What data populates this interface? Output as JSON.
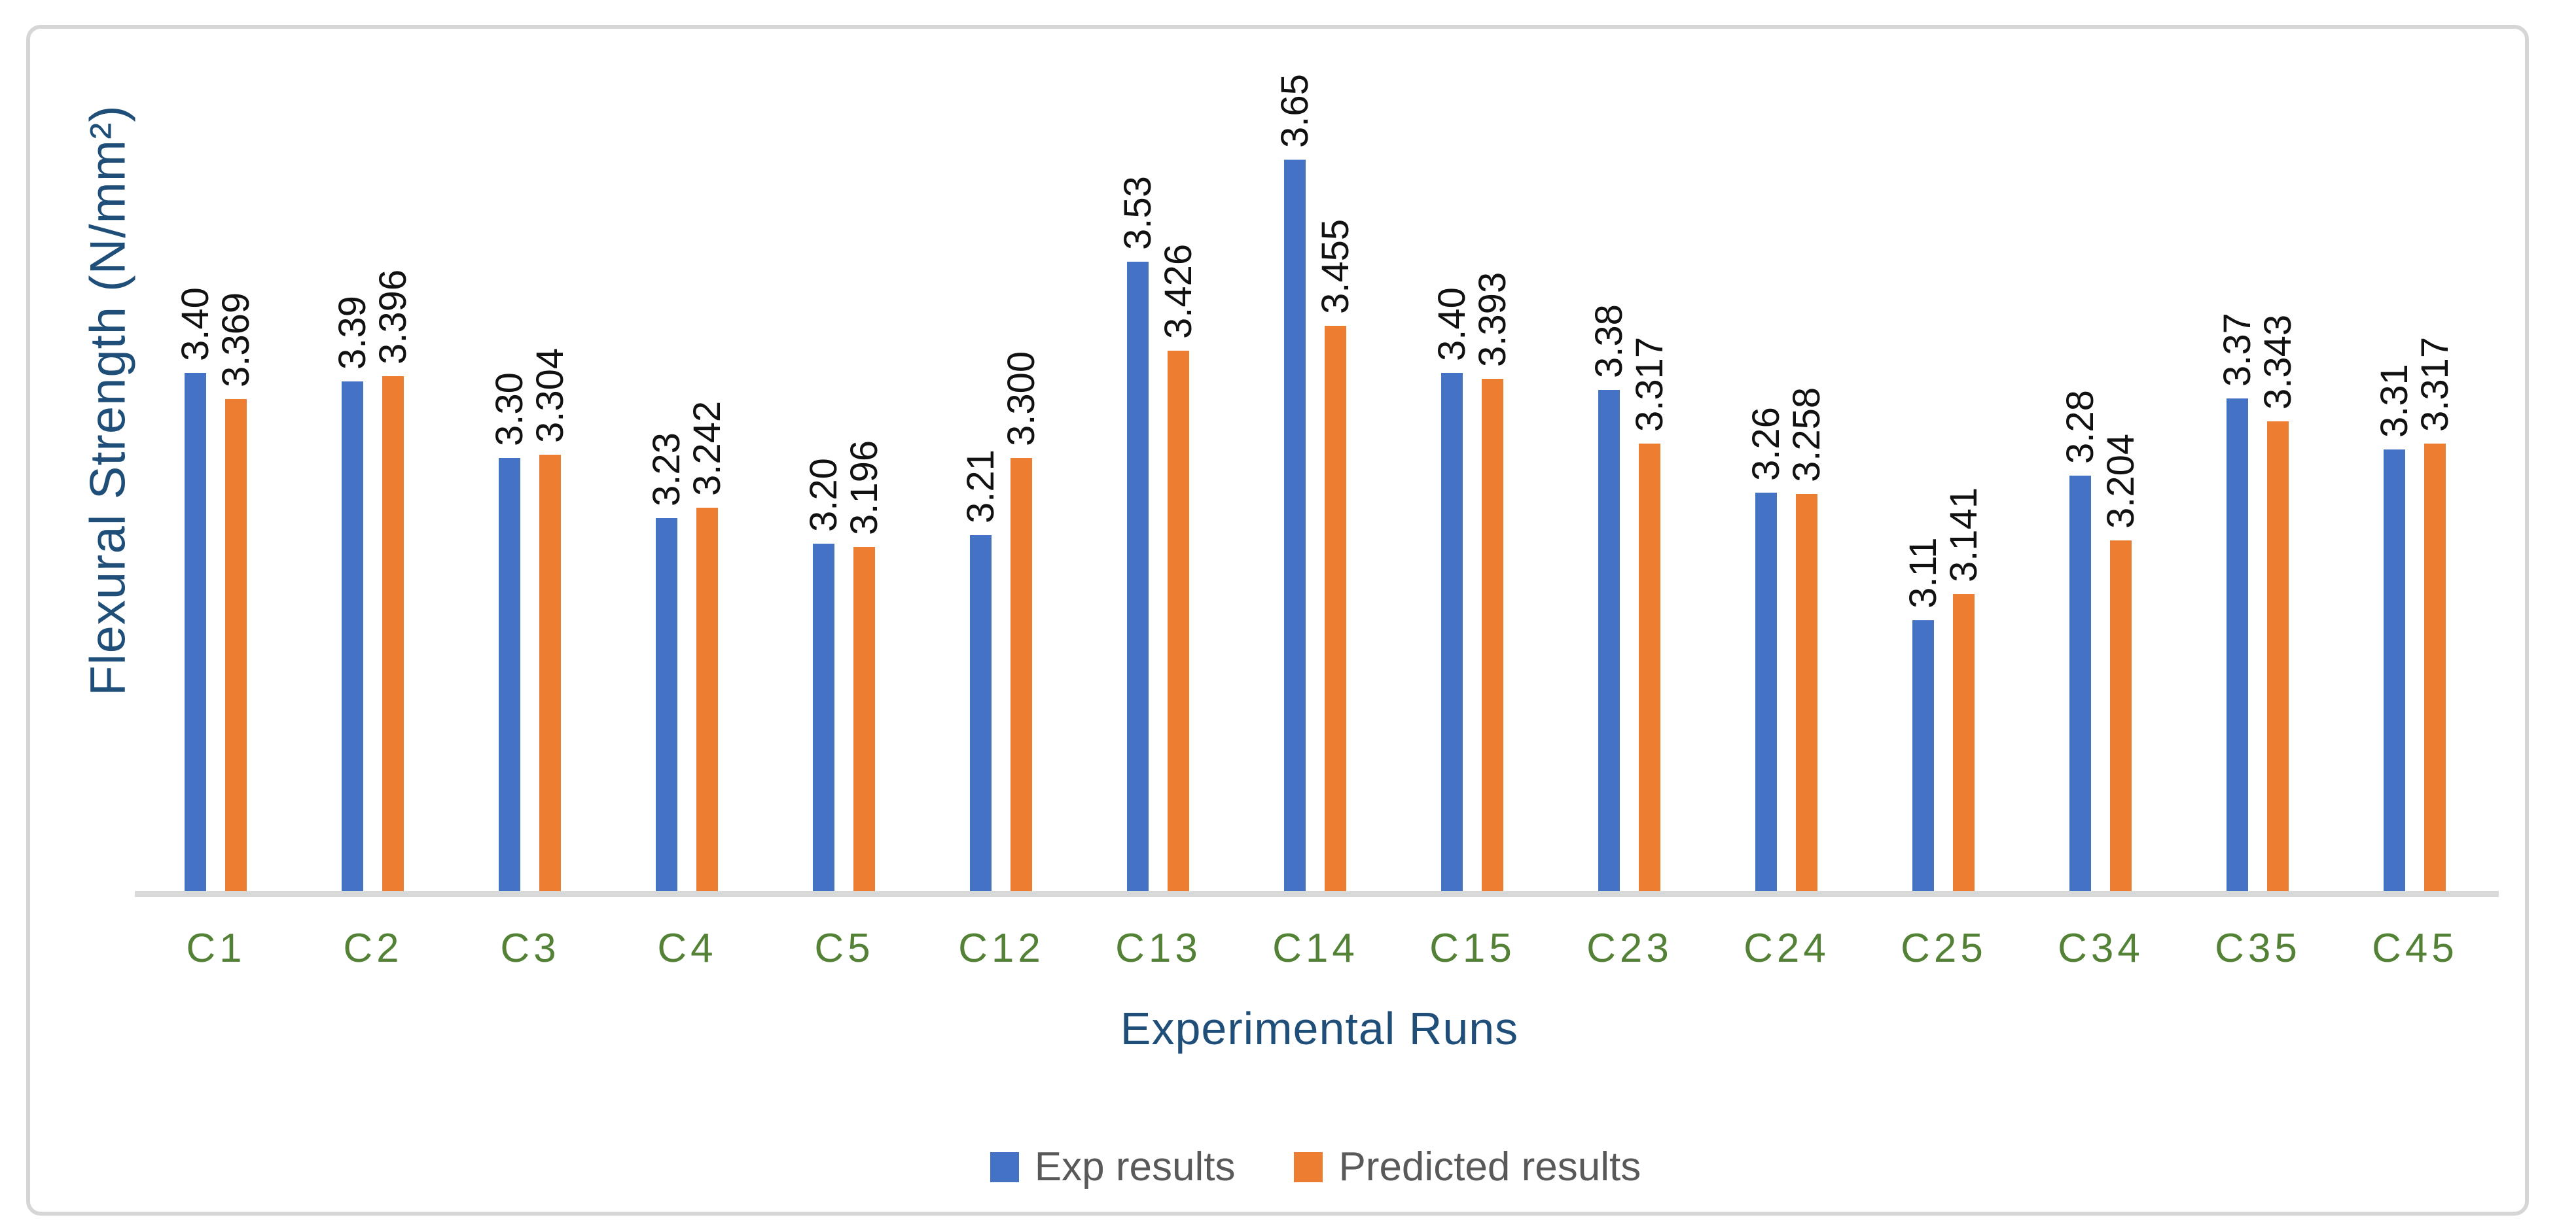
{
  "chart_data": {
    "type": "bar",
    "title": "",
    "xlabel": "Experimental Runs",
    "ylabel": "Flexural Strength (N/mm²)",
    "categories": [
      "C1",
      "C2",
      "C3",
      "C4",
      "C5",
      "C12",
      "C13",
      "C14",
      "C15",
      "C23",
      "C24",
      "C25",
      "C34",
      "C35",
      "C45"
    ],
    "series": [
      {
        "name": "Exp results",
        "color": "#4472c4",
        "values": [
          3.4,
          3.39,
          3.3,
          3.23,
          3.2,
          3.21,
          3.53,
          3.65,
          3.4,
          3.38,
          3.26,
          3.11,
          3.28,
          3.37,
          3.31
        ],
        "labels": [
          "3.40",
          "3.39",
          "3.30",
          "3.23",
          "3.20",
          "3.21",
          "3.53",
          "3.65",
          "3.40",
          "3.38",
          "3.26",
          "3.11",
          "3.28",
          "3.37",
          "3.31"
        ]
      },
      {
        "name": "Predicted results",
        "color": "#ed7d31",
        "values": [
          3.369,
          3.396,
          3.304,
          3.242,
          3.196,
          3.3,
          3.426,
          3.455,
          3.393,
          3.317,
          3.258,
          3.141,
          3.204,
          3.343,
          3.317
        ],
        "labels": [
          "3.369",
          "3.396",
          "3.304",
          "3.242",
          "3.196",
          "3.300",
          "3.426",
          "3.455",
          "3.393",
          "3.317",
          "3.258",
          "3.141",
          "3.204",
          "3.343",
          "3.317"
        ]
      }
    ],
    "ylim": [
      2.79,
      3.79
    ],
    "grid": false,
    "y_axis_ticks_visible": false,
    "legend_position": "bottom",
    "data_labels_rotated_90": true
  },
  "colors": {
    "bar_blue": "#4472c4",
    "bar_orange": "#ed7d31",
    "category_label_green": "#538135",
    "axis_title_blue": "#1f4e79",
    "legend_text_gray": "#595959",
    "axis_line_gray": "#d9d9d9",
    "frame_border_gray": "#d6d6d6",
    "data_label_black": "#111111"
  }
}
